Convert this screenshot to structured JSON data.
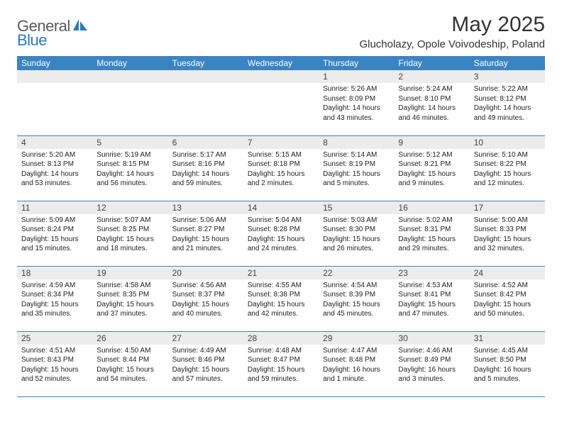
{
  "logo": {
    "part1": "General",
    "part2": "Blue"
  },
  "title": "May 2025",
  "location": "Glucholazy, Opole Voivodeship, Poland",
  "colors": {
    "header_bg": "#3b84c4",
    "header_text": "#ffffff",
    "daynum_bg": "#ececec",
    "rule": "#3b84c4",
    "logo_gray": "#5a5a5a",
    "logo_blue": "#2a7bbf"
  },
  "day_headers": [
    "Sunday",
    "Monday",
    "Tuesday",
    "Wednesday",
    "Thursday",
    "Friday",
    "Saturday"
  ],
  "weeks": [
    [
      {
        "n": "",
        "lines": []
      },
      {
        "n": "",
        "lines": []
      },
      {
        "n": "",
        "lines": []
      },
      {
        "n": "",
        "lines": []
      },
      {
        "n": "1",
        "lines": [
          "Sunrise: 5:26 AM",
          "Sunset: 8:09 PM",
          "Daylight: 14 hours and 43 minutes."
        ]
      },
      {
        "n": "2",
        "lines": [
          "Sunrise: 5:24 AM",
          "Sunset: 8:10 PM",
          "Daylight: 14 hours and 46 minutes."
        ]
      },
      {
        "n": "3",
        "lines": [
          "Sunrise: 5:22 AM",
          "Sunset: 8:12 PM",
          "Daylight: 14 hours and 49 minutes."
        ]
      }
    ],
    [
      {
        "n": "4",
        "lines": [
          "Sunrise: 5:20 AM",
          "Sunset: 8:13 PM",
          "Daylight: 14 hours and 53 minutes."
        ]
      },
      {
        "n": "5",
        "lines": [
          "Sunrise: 5:19 AM",
          "Sunset: 8:15 PM",
          "Daylight: 14 hours and 56 minutes."
        ]
      },
      {
        "n": "6",
        "lines": [
          "Sunrise: 5:17 AM",
          "Sunset: 8:16 PM",
          "Daylight: 14 hours and 59 minutes."
        ]
      },
      {
        "n": "7",
        "lines": [
          "Sunrise: 5:15 AM",
          "Sunset: 8:18 PM",
          "Daylight: 15 hours and 2 minutes."
        ]
      },
      {
        "n": "8",
        "lines": [
          "Sunrise: 5:14 AM",
          "Sunset: 8:19 PM",
          "Daylight: 15 hours and 5 minutes."
        ]
      },
      {
        "n": "9",
        "lines": [
          "Sunrise: 5:12 AM",
          "Sunset: 8:21 PM",
          "Daylight: 15 hours and 9 minutes."
        ]
      },
      {
        "n": "10",
        "lines": [
          "Sunrise: 5:10 AM",
          "Sunset: 8:22 PM",
          "Daylight: 15 hours and 12 minutes."
        ]
      }
    ],
    [
      {
        "n": "11",
        "lines": [
          "Sunrise: 5:09 AM",
          "Sunset: 8:24 PM",
          "Daylight: 15 hours and 15 minutes."
        ]
      },
      {
        "n": "12",
        "lines": [
          "Sunrise: 5:07 AM",
          "Sunset: 8:25 PM",
          "Daylight: 15 hours and 18 minutes."
        ]
      },
      {
        "n": "13",
        "lines": [
          "Sunrise: 5:06 AM",
          "Sunset: 8:27 PM",
          "Daylight: 15 hours and 21 minutes."
        ]
      },
      {
        "n": "14",
        "lines": [
          "Sunrise: 5:04 AM",
          "Sunset: 8:28 PM",
          "Daylight: 15 hours and 24 minutes."
        ]
      },
      {
        "n": "15",
        "lines": [
          "Sunrise: 5:03 AM",
          "Sunset: 8:30 PM",
          "Daylight: 15 hours and 26 minutes."
        ]
      },
      {
        "n": "16",
        "lines": [
          "Sunrise: 5:02 AM",
          "Sunset: 8:31 PM",
          "Daylight: 15 hours and 29 minutes."
        ]
      },
      {
        "n": "17",
        "lines": [
          "Sunrise: 5:00 AM",
          "Sunset: 8:33 PM",
          "Daylight: 15 hours and 32 minutes."
        ]
      }
    ],
    [
      {
        "n": "18",
        "lines": [
          "Sunrise: 4:59 AM",
          "Sunset: 8:34 PM",
          "Daylight: 15 hours and 35 minutes."
        ]
      },
      {
        "n": "19",
        "lines": [
          "Sunrise: 4:58 AM",
          "Sunset: 8:35 PM",
          "Daylight: 15 hours and 37 minutes."
        ]
      },
      {
        "n": "20",
        "lines": [
          "Sunrise: 4:56 AM",
          "Sunset: 8:37 PM",
          "Daylight: 15 hours and 40 minutes."
        ]
      },
      {
        "n": "21",
        "lines": [
          "Sunrise: 4:55 AM",
          "Sunset: 8:38 PM",
          "Daylight: 15 hours and 42 minutes."
        ]
      },
      {
        "n": "22",
        "lines": [
          "Sunrise: 4:54 AM",
          "Sunset: 8:39 PM",
          "Daylight: 15 hours and 45 minutes."
        ]
      },
      {
        "n": "23",
        "lines": [
          "Sunrise: 4:53 AM",
          "Sunset: 8:41 PM",
          "Daylight: 15 hours and 47 minutes."
        ]
      },
      {
        "n": "24",
        "lines": [
          "Sunrise: 4:52 AM",
          "Sunset: 8:42 PM",
          "Daylight: 15 hours and 50 minutes."
        ]
      }
    ],
    [
      {
        "n": "25",
        "lines": [
          "Sunrise: 4:51 AM",
          "Sunset: 8:43 PM",
          "Daylight: 15 hours and 52 minutes."
        ]
      },
      {
        "n": "26",
        "lines": [
          "Sunrise: 4:50 AM",
          "Sunset: 8:44 PM",
          "Daylight: 15 hours and 54 minutes."
        ]
      },
      {
        "n": "27",
        "lines": [
          "Sunrise: 4:49 AM",
          "Sunset: 8:46 PM",
          "Daylight: 15 hours and 57 minutes."
        ]
      },
      {
        "n": "28",
        "lines": [
          "Sunrise: 4:48 AM",
          "Sunset: 8:47 PM",
          "Daylight: 15 hours and 59 minutes."
        ]
      },
      {
        "n": "29",
        "lines": [
          "Sunrise: 4:47 AM",
          "Sunset: 8:48 PM",
          "Daylight: 16 hours and 1 minute."
        ]
      },
      {
        "n": "30",
        "lines": [
          "Sunrise: 4:46 AM",
          "Sunset: 8:49 PM",
          "Daylight: 16 hours and 3 minutes."
        ]
      },
      {
        "n": "31",
        "lines": [
          "Sunrise: 4:45 AM",
          "Sunset: 8:50 PM",
          "Daylight: 16 hours and 5 minutes."
        ]
      }
    ]
  ]
}
